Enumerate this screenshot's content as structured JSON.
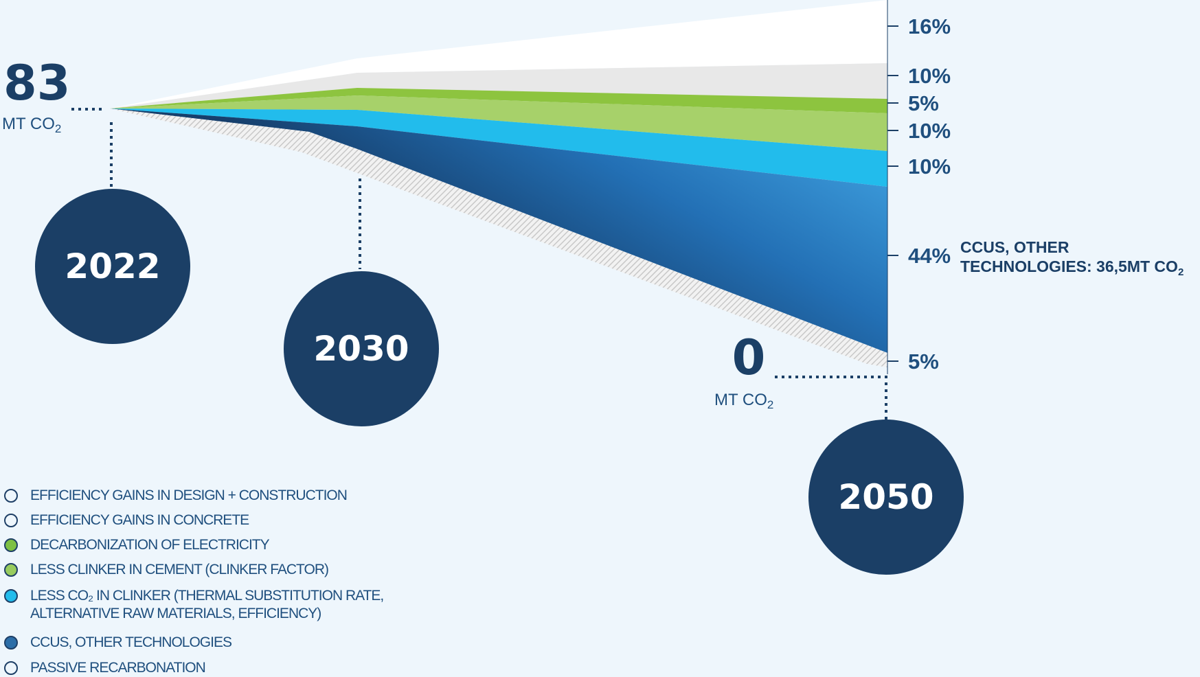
{
  "chart_data": {
    "type": "area",
    "title": "",
    "start": {
      "value": "83",
      "unit_prefix": "MT CO",
      "unit_sub": "2",
      "year": "2022"
    },
    "end": {
      "value": "0",
      "unit_prefix": "MT CO",
      "unit_sub": "2",
      "year": "2050"
    },
    "milestones": [
      "2022",
      "2030",
      "2050"
    ],
    "x": [
      2022,
      2030,
      2050
    ],
    "series": [
      {
        "name": "EFFICIENCY GAINS IN DESIGN + CONSTRUCTION",
        "share_2050": "16%",
        "color": "#ffffff"
      },
      {
        "name": "EFFICIENCY GAINS IN CONCRETE",
        "share_2050": "10%",
        "color": "#e8e8e8"
      },
      {
        "name": "DECARBONIZATION OF ELECTRICITY",
        "share_2050": "5%",
        "color": "#8dc43f"
      },
      {
        "name": "LESS CLINKER IN CEMENT (CLINKER FACTOR)",
        "share_2050": "10%",
        "color": "#a7d16a"
      },
      {
        "name": "LESS CO₂ IN CLINKER (THERMAL SUBSTITUTION RATE,\nALTERNATIVE RAW MATERIALS, EFFICIENCY)",
        "share_2050": "10%",
        "color": "#22bcec"
      },
      {
        "name": "CCUS, OTHER TECHNOLOGIES",
        "share_2050": "44%",
        "color": "#2e7fc2"
      },
      {
        "name": "PASSIVE RECARBONATION",
        "share_2050": "5%",
        "color": "#cfcfcf"
      }
    ],
    "annotation": {
      "line1": "CCUS, OTHER",
      "line2": "TECHNOLOGIES: 36,5MT CO",
      "sub": "2"
    },
    "legend_position": "bottom-left"
  },
  "colors": {
    "navy": "#1b3f66",
    "label": "#1f4f7e",
    "background": "#eef6fc"
  }
}
